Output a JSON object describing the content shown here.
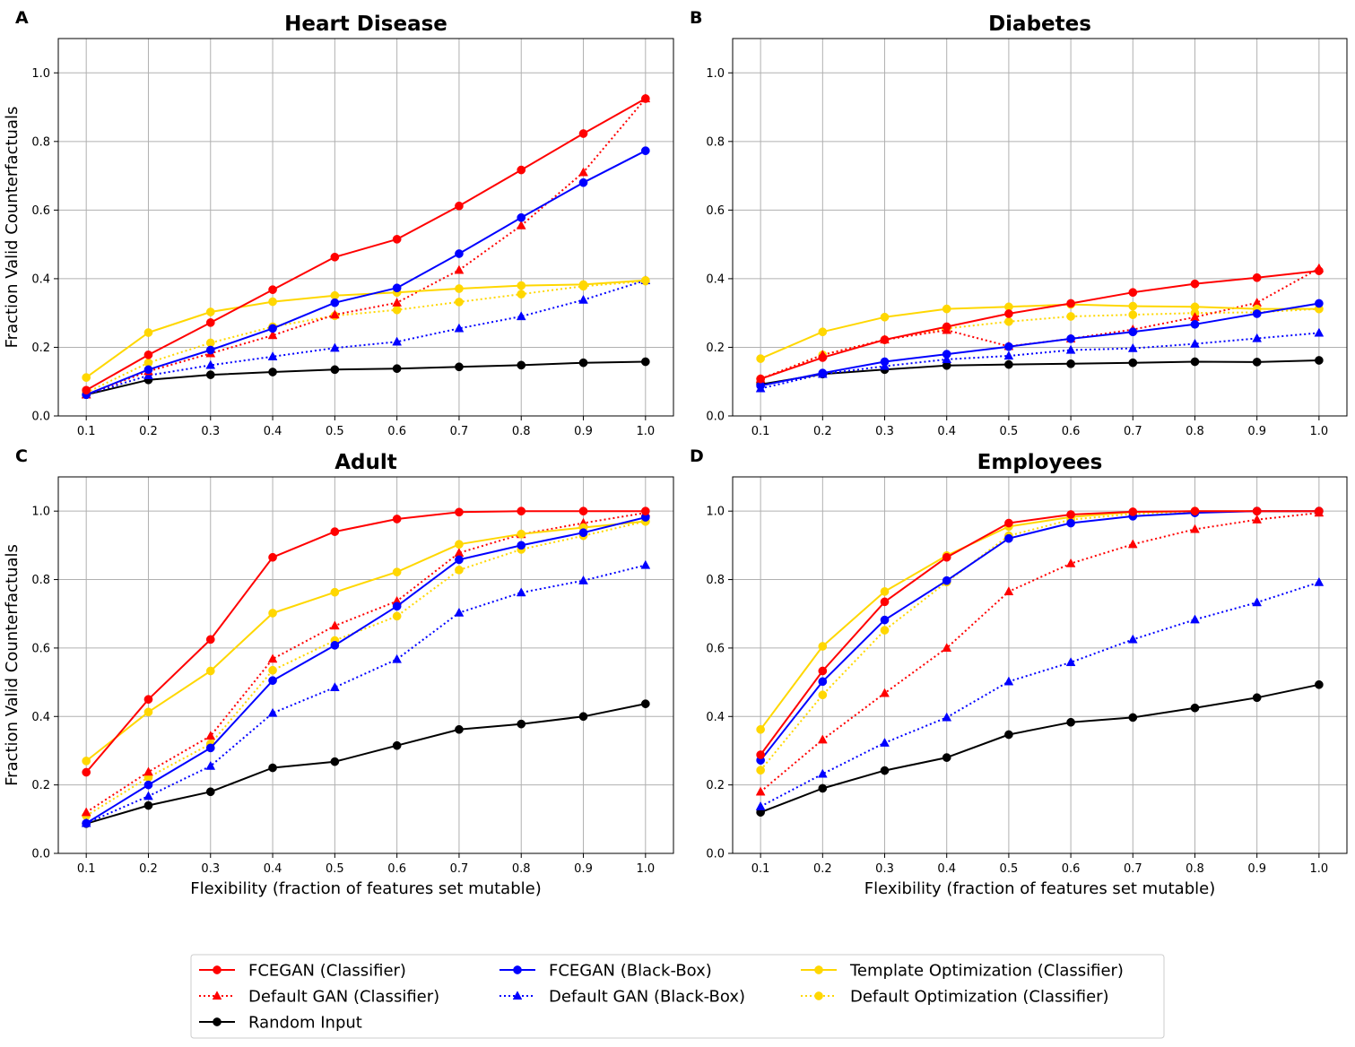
{
  "legend": [
    {
      "name": "FCEGAN (Classifier)",
      "color": "#ff0000",
      "style": "solid",
      "marker": "circle"
    },
    {
      "name": "Default GAN (Classifier)",
      "color": "#ff0000",
      "style": "dotted",
      "marker": "triangle"
    },
    {
      "name": "Random Input",
      "color": "#000000",
      "style": "solid",
      "marker": "circle"
    },
    {
      "name": "FCEGAN (Black-Box)",
      "color": "#0000ff",
      "style": "solid",
      "marker": "circle"
    },
    {
      "name": "Default GAN (Black-Box)",
      "color": "#0000ff",
      "style": "dotted",
      "marker": "triangle"
    },
    {
      "name": "Template Optimization (Classifier)",
      "color": "#ffd700",
      "style": "solid",
      "marker": "circle"
    },
    {
      "name": "Default Optimization (Classifier)",
      "color": "#ffd700",
      "style": "dotted",
      "marker": "circle"
    }
  ],
  "chart_data": [
    {
      "type": "line",
      "letter": "A",
      "title": "Heart Disease",
      "xlabel": "",
      "ylabel": "Fraction Valid Counterfactuals",
      "x": [
        0.1,
        0.2,
        0.3,
        0.4,
        0.5,
        0.6,
        0.7,
        0.8,
        0.9,
        1.0
      ],
      "xticks": [
        "0.1",
        "0.2",
        "0.3",
        "0.4",
        "0.5",
        "0.6",
        "0.7",
        "0.8",
        "0.9",
        "1.0"
      ],
      "yticks": [
        "0.0",
        "0.2",
        "0.4",
        "0.6",
        "0.8",
        "1.0"
      ],
      "ylim": [
        0,
        1.1
      ],
      "grid": true,
      "series": [
        {
          "name": "FCEGAN (Classifier)",
          "values": [
            0.075,
            0.178,
            0.272,
            0.368,
            0.463,
            0.515,
            0.612,
            0.717,
            0.823,
            0.925
          ]
        },
        {
          "name": "Default GAN (Classifier)",
          "values": [
            0.062,
            0.13,
            0.182,
            0.235,
            0.295,
            0.33,
            0.425,
            0.555,
            0.71,
            0.925
          ]
        },
        {
          "name": "Random Input",
          "values": [
            0.062,
            0.105,
            0.12,
            0.128,
            0.135,
            0.138,
            0.143,
            0.148,
            0.155,
            0.158
          ]
        },
        {
          "name": "FCEGAN (Black-Box)",
          "values": [
            0.062,
            0.135,
            0.192,
            0.255,
            0.33,
            0.373,
            0.473,
            0.578,
            0.68,
            0.773
          ]
        },
        {
          "name": "Default GAN (Black-Box)",
          "values": [
            0.062,
            0.118,
            0.148,
            0.173,
            0.198,
            0.216,
            0.255,
            0.29,
            0.338,
            0.395
          ]
        },
        {
          "name": "Template Optimization (Classifier)",
          "values": [
            0.112,
            0.243,
            0.303,
            0.333,
            0.351,
            0.36,
            0.371,
            0.38,
            0.383,
            0.395
          ]
        },
        {
          "name": "Default Optimization (Classifier)",
          "values": [
            0.068,
            0.155,
            0.213,
            0.26,
            0.292,
            0.309,
            0.332,
            0.355,
            0.378,
            0.393
          ]
        }
      ]
    },
    {
      "type": "line",
      "letter": "B",
      "title": "Diabetes",
      "xlabel": "",
      "ylabel": "",
      "x": [
        0.1,
        0.2,
        0.3,
        0.4,
        0.5,
        0.6,
        0.7,
        0.8,
        0.9,
        1.0
      ],
      "xticks": [
        "0.1",
        "0.2",
        "0.3",
        "0.4",
        "0.5",
        "0.6",
        "0.7",
        "0.8",
        "0.9",
        "1.0"
      ],
      "yticks": [
        "0.0",
        "0.2",
        "0.4",
        "0.6",
        "0.8",
        "1.0"
      ],
      "ylim": [
        0,
        1.1
      ],
      "grid": true,
      "series": [
        {
          "name": "FCEGAN (Classifier)",
          "values": [
            0.108,
            0.17,
            0.222,
            0.26,
            0.298,
            0.328,
            0.36,
            0.385,
            0.403,
            0.423
          ]
        },
        {
          "name": "Default GAN (Classifier)",
          "values": [
            0.108,
            0.178,
            0.222,
            0.25,
            0.203,
            0.225,
            0.252,
            0.288,
            0.33,
            0.43
          ]
        },
        {
          "name": "Random Input",
          "values": [
            0.092,
            0.122,
            0.135,
            0.147,
            0.15,
            0.152,
            0.155,
            0.158,
            0.157,
            0.162
          ]
        },
        {
          "name": "FCEGAN (Black-Box)",
          "values": [
            0.088,
            0.125,
            0.158,
            0.18,
            0.202,
            0.225,
            0.245,
            0.267,
            0.298,
            0.328
          ]
        },
        {
          "name": "Default GAN (Black-Box)",
          "values": [
            0.08,
            0.122,
            0.145,
            0.165,
            0.175,
            0.192,
            0.197,
            0.21,
            0.226,
            0.242
          ]
        },
        {
          "name": "Template Optimization (Classifier)",
          "values": [
            0.167,
            0.245,
            0.288,
            0.312,
            0.318,
            0.325,
            0.32,
            0.318,
            0.312,
            0.312
          ]
        },
        {
          "name": "Default Optimization (Classifier)",
          "values": [
            0.108,
            0.178,
            0.222,
            0.255,
            0.275,
            0.29,
            0.295,
            0.3,
            0.302,
            0.312
          ]
        }
      ]
    },
    {
      "type": "line",
      "letter": "C",
      "title": "Adult",
      "xlabel": "Flexibility (fraction of features set mutable)",
      "ylabel": "Fraction Valid Counterfactuals",
      "x": [
        0.1,
        0.2,
        0.3,
        0.4,
        0.5,
        0.6,
        0.7,
        0.8,
        0.9,
        1.0
      ],
      "xticks": [
        "0.1",
        "0.2",
        "0.3",
        "0.4",
        "0.5",
        "0.6",
        "0.7",
        "0.8",
        "0.9",
        "1.0"
      ],
      "yticks": [
        "0.0",
        "0.2",
        "0.4",
        "0.6",
        "0.8",
        "1.0"
      ],
      "ylim": [
        0,
        1.1
      ],
      "grid": true,
      "series": [
        {
          "name": "FCEGAN (Classifier)",
          "values": [
            0.237,
            0.45,
            0.625,
            0.865,
            0.94,
            0.977,
            0.997,
            1.0,
            1.0,
            1.0
          ]
        },
        {
          "name": "Default GAN (Classifier)",
          "values": [
            0.12,
            0.238,
            0.343,
            0.568,
            0.665,
            0.737,
            0.878,
            0.932,
            0.965,
            0.995
          ]
        },
        {
          "name": "Random Input",
          "values": [
            0.087,
            0.14,
            0.18,
            0.25,
            0.268,
            0.315,
            0.362,
            0.378,
            0.4,
            0.437
          ]
        },
        {
          "name": "FCEGAN (Black-Box)",
          "values": [
            0.088,
            0.2,
            0.308,
            0.505,
            0.608,
            0.722,
            0.858,
            0.9,
            0.937,
            0.982
          ]
        },
        {
          "name": "Default GAN (Black-Box)",
          "values": [
            0.088,
            0.167,
            0.255,
            0.41,
            0.485,
            0.567,
            0.703,
            0.762,
            0.797,
            0.842
          ]
        },
        {
          "name": "Template Optimization (Classifier)",
          "values": [
            0.27,
            0.413,
            0.533,
            0.702,
            0.763,
            0.822,
            0.903,
            0.933,
            0.952,
            0.97
          ]
        },
        {
          "name": "Default Optimization (Classifier)",
          "values": [
            0.11,
            0.222,
            0.32,
            0.535,
            0.622,
            0.693,
            0.828,
            0.888,
            0.928,
            0.97
          ]
        }
      ]
    },
    {
      "type": "line",
      "letter": "D",
      "title": "Employees",
      "xlabel": "Flexibility (fraction of features set mutable)",
      "ylabel": "",
      "x": [
        0.1,
        0.2,
        0.3,
        0.4,
        0.5,
        0.6,
        0.7,
        0.8,
        0.9,
        1.0
      ],
      "xticks": [
        "0.1",
        "0.2",
        "0.3",
        "0.4",
        "0.5",
        "0.6",
        "0.7",
        "0.8",
        "0.9",
        "1.0"
      ],
      "yticks": [
        "0.0",
        "0.2",
        "0.4",
        "0.6",
        "0.8",
        "1.0"
      ],
      "ylim": [
        0,
        1.1
      ],
      "grid": true,
      "series": [
        {
          "name": "FCEGAN (Classifier)",
          "values": [
            0.288,
            0.533,
            0.735,
            0.865,
            0.965,
            0.99,
            0.998,
            1.0,
            1.0,
            1.0
          ]
        },
        {
          "name": "Default GAN (Classifier)",
          "values": [
            0.18,
            0.332,
            0.468,
            0.6,
            0.765,
            0.847,
            0.903,
            0.947,
            0.975,
            0.995
          ]
        },
        {
          "name": "Random Input",
          "values": [
            0.12,
            0.19,
            0.242,
            0.28,
            0.347,
            0.383,
            0.397,
            0.425,
            0.455,
            0.493
          ]
        },
        {
          "name": "FCEGAN (Black-Box)",
          "values": [
            0.272,
            0.502,
            0.682,
            0.797,
            0.92,
            0.965,
            0.985,
            0.995,
            1.0,
            1.0
          ]
        },
        {
          "name": "Default GAN (Black-Box)",
          "values": [
            0.137,
            0.232,
            0.323,
            0.397,
            0.502,
            0.558,
            0.625,
            0.683,
            0.733,
            0.792
          ]
        },
        {
          "name": "Template Optimization (Classifier)",
          "values": [
            0.362,
            0.605,
            0.765,
            0.87,
            0.955,
            0.983,
            0.997,
            1.0,
            1.0,
            1.0
          ]
        },
        {
          "name": "Default Optimization (Classifier)",
          "values": [
            0.243,
            0.463,
            0.652,
            0.793,
            0.928,
            0.975,
            0.992,
            0.998,
            1.0,
            1.0
          ]
        }
      ]
    }
  ]
}
